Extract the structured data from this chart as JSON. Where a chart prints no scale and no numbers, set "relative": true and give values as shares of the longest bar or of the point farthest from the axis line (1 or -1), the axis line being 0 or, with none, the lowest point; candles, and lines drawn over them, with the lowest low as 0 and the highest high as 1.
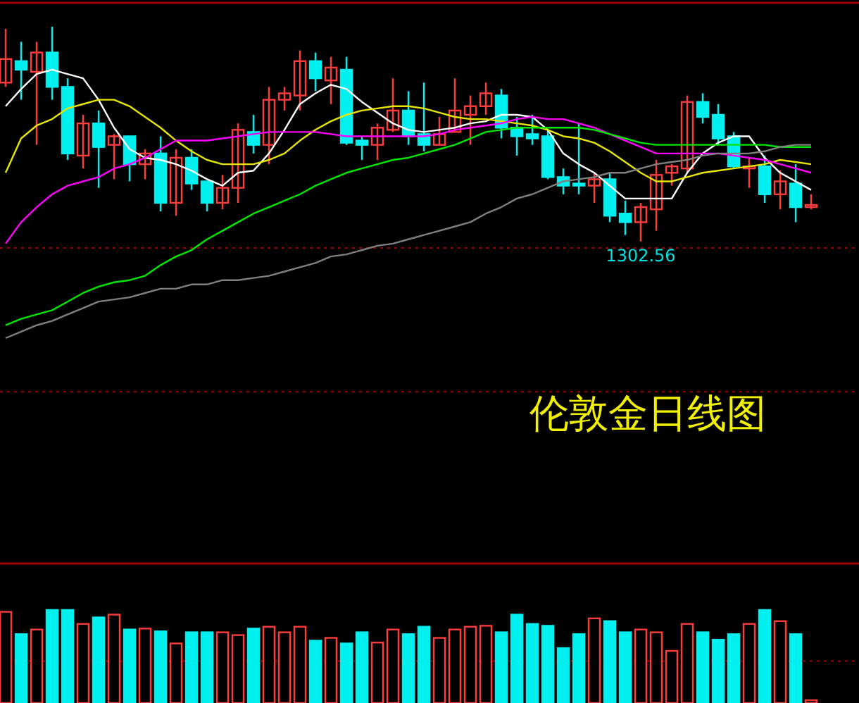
{
  "chart_data": [
    {
      "type": "candlestick",
      "title": "伦敦金日线图",
      "relative": true,
      "ref_lines": [
        {
          "axis": "y",
          "value": -0.03,
          "color": "#a00000",
          "line_style": "dashed"
        },
        {
          "axis": "y",
          "value": -0.7,
          "color": "#a00000",
          "line_style": "dashed"
        }
      ],
      "categories": [
        null,
        null,
        null,
        null,
        null,
        null,
        null,
        null,
        null,
        null,
        null,
        null,
        null,
        null,
        null,
        null,
        null,
        null,
        null,
        null,
        null,
        null,
        null,
        null,
        null,
        null,
        null,
        null,
        null,
        null,
        null,
        null,
        null,
        null,
        null,
        null,
        null,
        null,
        null,
        null,
        null,
        null,
        null,
        null,
        null,
        null,
        null,
        null,
        null,
        null,
        null,
        null,
        null
      ],
      "ohlc": [
        [
          0.74,
          0.99,
          0.72,
          0.85
        ],
        [
          0.84,
          0.93,
          0.66,
          0.8
        ],
        [
          0.79,
          0.93,
          0.45,
          0.88
        ],
        [
          0.88,
          1,
          0.66,
          0.72
        ],
        [
          0.72,
          0.76,
          0.38,
          0.41
        ],
        [
          0.4,
          0.59,
          0.34,
          0.55
        ],
        [
          0.55,
          0.61,
          0.25,
          0.44
        ],
        [
          0.45,
          0.5,
          0.29,
          0.49
        ],
        [
          0.49,
          0.49,
          0.28,
          0.36
        ],
        [
          0.36,
          0.43,
          0.29,
          0.41
        ],
        [
          0.41,
          0.49,
          0.14,
          0.18
        ],
        [
          0.18,
          0.43,
          0.12,
          0.39
        ],
        [
          0.39,
          0.43,
          0.24,
          0.27
        ],
        [
          0.28,
          0.28,
          0.14,
          0.18
        ],
        [
          0.18,
          0.31,
          0.15,
          0.25
        ],
        [
          0.25,
          0.55,
          0.18,
          0.52
        ],
        [
          0.51,
          0.59,
          0.41,
          0.45
        ],
        [
          0.45,
          0.72,
          0.36,
          0.66
        ],
        [
          0.66,
          0.72,
          0.61,
          0.69
        ],
        [
          0.68,
          0.89,
          0.61,
          0.84
        ],
        [
          0.84,
          0.88,
          0.7,
          0.76
        ],
        [
          0.75,
          0.86,
          0.64,
          0.81
        ],
        [
          0.8,
          0.86,
          0.45,
          0.46
        ],
        [
          0.47,
          0.49,
          0.38,
          0.45
        ],
        [
          0.45,
          0.55,
          0.38,
          0.53
        ],
        [
          0.52,
          0.76,
          0.51,
          0.61
        ],
        [
          0.61,
          0.7,
          0.45,
          0.49
        ],
        [
          0.5,
          0.74,
          0.42,
          0.45
        ],
        [
          0.45,
          0.58,
          0.45,
          0.5
        ],
        [
          0.51,
          0.76,
          0.51,
          0.61
        ],
        [
          0.59,
          0.68,
          0.45,
          0.63
        ],
        [
          0.63,
          0.74,
          0.59,
          0.69
        ],
        [
          0.68,
          0.71,
          0.48,
          0.53
        ],
        [
          0.53,
          0.58,
          0.4,
          0.49
        ],
        [
          0.5,
          0.59,
          0.45,
          0.48
        ],
        [
          0.49,
          0.52,
          0.29,
          0.3
        ],
        [
          0.3,
          0.34,
          0.22,
          0.26
        ],
        [
          0.27,
          0.55,
          0.22,
          0.26
        ],
        [
          0.26,
          0.32,
          0.18,
          0.29
        ],
        [
          0.29,
          0.32,
          0.09,
          0.12
        ],
        [
          0.13,
          0.19,
          0.03,
          0.09
        ],
        [
          0.09,
          0.18,
          0,
          0.16
        ],
        [
          0.15,
          0.38,
          0.05,
          0.31
        ],
        [
          0.32,
          0.36,
          0.26,
          0.35
        ],
        [
          0.34,
          0.68,
          0.32,
          0.65
        ],
        [
          0.65,
          0.69,
          0.55,
          0.58
        ],
        [
          0.59,
          0.64,
          0.45,
          0.48
        ],
        [
          0.49,
          0.51,
          0.34,
          0.35
        ],
        [
          0.34,
          0.39,
          0.25,
          0.35
        ],
        [
          0.35,
          0.4,
          0.18,
          0.22
        ],
        [
          0.22,
          0.33,
          0.15,
          0.28
        ],
        [
          0.27,
          0.36,
          0.09,
          0.16
        ],
        [
          0.16,
          0.22,
          0.15,
          0.17
        ]
      ],
      "colors": [
        "#ff3c3c",
        "#00f0f0",
        "#ff3c3c",
        "#00f0f0",
        "#00f0f0",
        "#ff3c3c",
        "#00f0f0",
        "#ff3c3c",
        "#00f0f0",
        "#ff3c3c",
        "#00f0f0",
        "#ff3c3c",
        "#00f0f0",
        "#00f0f0",
        "#ff3c3c",
        "#ff3c3c",
        "#00f0f0",
        "#ff3c3c",
        "#ff3c3c",
        "#ff3c3c",
        "#00f0f0",
        "#ff3c3c",
        "#00f0f0",
        "#00f0f0",
        "#ff3c3c",
        "#ff3c3c",
        "#00f0f0",
        "#00f0f0",
        "#ff3c3c",
        "#ff3c3c",
        "#ff3c3c",
        "#ff3c3c",
        "#00f0f0",
        "#00f0f0",
        "#00f0f0",
        "#00f0f0",
        "#00f0f0",
        "#00f0f0",
        "#ff3c3c",
        "#00f0f0",
        "#00f0f0",
        "#ff3c3c",
        "#ff3c3c",
        "#ff3c3c",
        "#ff3c3c",
        "#00f0f0",
        "#00f0f0",
        "#00f0f0",
        "#ff3c3c",
        "#00f0f0",
        "#ff3c3c",
        "#00f0f0",
        "#ff3c3c"
      ],
      "series": [
        {
          "type": "line",
          "color": "#ffffff",
          "values": [
            0.63,
            0.71,
            0.78,
            0.8,
            0.78,
            0.76,
            0.66,
            0.53,
            0.43,
            0.39,
            0.38,
            0.36,
            0.33,
            0.29,
            0.26,
            0.32,
            0.33,
            0.41,
            0.52,
            0.64,
            0.69,
            0.73,
            0.71,
            0.65,
            0.6,
            0.55,
            0.52,
            0.51,
            0.52,
            0.53,
            0.55,
            0.56,
            0.59,
            0.59,
            0.58,
            0.52,
            0.41,
            0.36,
            0.32,
            0.26,
            0.2,
            0.2,
            0.2,
            0.2,
            0.32,
            0.41,
            0.46,
            0.49,
            0.49,
            0.39,
            0.32,
            0.28,
            0.24
          ]
        },
        {
          "type": "line",
          "color": "#e6e600",
          "values": [
            0.32,
            0.48,
            0.54,
            0.57,
            0.62,
            0.64,
            0.66,
            0.66,
            0.63,
            0.58,
            0.53,
            0.47,
            0.42,
            0.38,
            0.36,
            0.36,
            0.36,
            0.38,
            0.41,
            0.47,
            0.52,
            0.56,
            0.59,
            0.61,
            0.62,
            0.63,
            0.63,
            0.62,
            0.6,
            0.58,
            0.57,
            0.57,
            0.56,
            0.55,
            0.54,
            0.52,
            0.49,
            0.48,
            0.46,
            0.42,
            0.37,
            0.32,
            0.28,
            0.28,
            0.3,
            0.32,
            0.33,
            0.34,
            0.35,
            0.36,
            0.38,
            0.37,
            0.36
          ]
        },
        {
          "type": "line",
          "color": "#ff00ff",
          "values": [
            -0.01,
            0.09,
            0.16,
            0.22,
            0.26,
            0.28,
            0.3,
            0.34,
            0.36,
            0.39,
            0.43,
            0.47,
            0.47,
            0.47,
            0.48,
            0.49,
            0.5,
            0.51,
            0.51,
            0.51,
            0.51,
            0.5,
            0.49,
            0.49,
            0.49,
            0.49,
            0.49,
            0.49,
            0.5,
            0.52,
            0.53,
            0.54,
            0.55,
            0.57,
            0.58,
            0.57,
            0.57,
            0.55,
            0.53,
            0.5,
            0.47,
            0.44,
            0.41,
            0.41,
            0.41,
            0.41,
            0.41,
            0.4,
            0.39,
            0.38,
            0.36,
            0.34,
            0.32
          ]
        },
        {
          "type": "line",
          "color": "#00e600",
          "values": [
            -0.39,
            -0.36,
            -0.34,
            -0.32,
            -0.28,
            -0.24,
            -0.21,
            -0.19,
            -0.18,
            -0.16,
            -0.11,
            -0.07,
            -0.04,
            0.01,
            0.05,
            0.09,
            0.13,
            0.16,
            0.19,
            0.22,
            0.26,
            0.29,
            0.32,
            0.34,
            0.36,
            0.38,
            0.39,
            0.41,
            0.43,
            0.45,
            0.48,
            0.51,
            0.52,
            0.53,
            0.53,
            0.53,
            0.53,
            0.53,
            0.52,
            0.5,
            0.48,
            0.46,
            0.45,
            0.45,
            0.45,
            0.45,
            0.45,
            0.45,
            0.45,
            0.45,
            0.44,
            0.44,
            0.44
          ]
        },
        {
          "type": "line",
          "color": "#808080",
          "values": [
            -0.45,
            -0.42,
            -0.39,
            -0.37,
            -0.34,
            -0.31,
            -0.28,
            -0.27,
            -0.26,
            -0.24,
            -0.22,
            -0.22,
            -0.2,
            -0.2,
            -0.18,
            -0.18,
            -0.17,
            -0.16,
            -0.14,
            -0.12,
            -0.1,
            -0.07,
            -0.06,
            -0.04,
            -0.02,
            -0.01,
            0.01,
            0.03,
            0.05,
            0.07,
            0.09,
            0.13,
            0.16,
            0.2,
            0.22,
            0.25,
            0.28,
            0.29,
            0.3,
            0.32,
            0.32,
            0.34,
            0.36,
            0.37,
            0.38,
            0.4,
            0.41,
            0.41,
            0.41,
            0.42,
            0.44,
            0.45,
            0.45
          ]
        }
      ],
      "annotations": [
        "1302.56"
      ]
    },
    {
      "type": "bar",
      "relative": true,
      "ref_lines": [
        {
          "axis": "y",
          "value": 0.45,
          "color": "#a00000",
          "line_style": "dashed"
        }
      ],
      "categories": [
        null,
        null,
        null,
        null,
        null,
        null,
        null,
        null,
        null,
        null,
        null,
        null,
        null,
        null,
        null,
        null,
        null,
        null,
        null,
        null,
        null,
        null,
        null,
        null,
        null,
        null,
        null,
        null,
        null,
        null,
        null,
        null,
        null,
        null,
        null,
        null,
        null,
        null,
        null,
        null,
        null,
        null,
        null,
        null,
        null,
        null,
        null,
        null,
        null,
        null,
        null,
        null,
        null
      ],
      "values": [
        0.98,
        0.74,
        0.79,
        1,
        1,
        0.85,
        0.92,
        0.95,
        0.79,
        0.8,
        0.77,
        0.64,
        0.76,
        0.76,
        0.76,
        0.73,
        0.8,
        0.82,
        0.76,
        0.82,
        0.67,
        0.7,
        0.64,
        0.76,
        0.65,
        0.79,
        0.74,
        0.82,
        0.7,
        0.79,
        0.82,
        0.83,
        0.76,
        0.95,
        0.85,
        0.83,
        0.59,
        0.74,
        0.91,
        0.88,
        0.76,
        0.79,
        0.76,
        0.56,
        0.85,
        0.76,
        0.68,
        0.74,
        0.85,
        1,
        0.88,
        0.74,
        0.03
      ],
      "colors": [
        "#ff3c3c",
        "#00f0f0",
        "#ff3c3c",
        "#00f0f0",
        "#00f0f0",
        "#ff3c3c",
        "#00f0f0",
        "#ff3c3c",
        "#00f0f0",
        "#ff3c3c",
        "#00f0f0",
        "#ff3c3c",
        "#00f0f0",
        "#00f0f0",
        "#ff3c3c",
        "#ff3c3c",
        "#00f0f0",
        "#ff3c3c",
        "#ff3c3c",
        "#ff3c3c",
        "#00f0f0",
        "#ff3c3c",
        "#00f0f0",
        "#00f0f0",
        "#ff3c3c",
        "#ff3c3c",
        "#00f0f0",
        "#00f0f0",
        "#ff3c3c",
        "#ff3c3c",
        "#ff3c3c",
        "#ff3c3c",
        "#00f0f0",
        "#00f0f0",
        "#00f0f0",
        "#00f0f0",
        "#00f0f0",
        "#00f0f0",
        "#ff3c3c",
        "#00f0f0",
        "#00f0f0",
        "#ff3c3c",
        "#ff3c3c",
        "#ff3c3c",
        "#ff3c3c",
        "#00f0f0",
        "#00f0f0",
        "#00f0f0",
        "#ff3c3c",
        "#00f0f0",
        "#ff3c3c",
        "#00f0f0",
        "#ff3c3c"
      ]
    }
  ]
}
